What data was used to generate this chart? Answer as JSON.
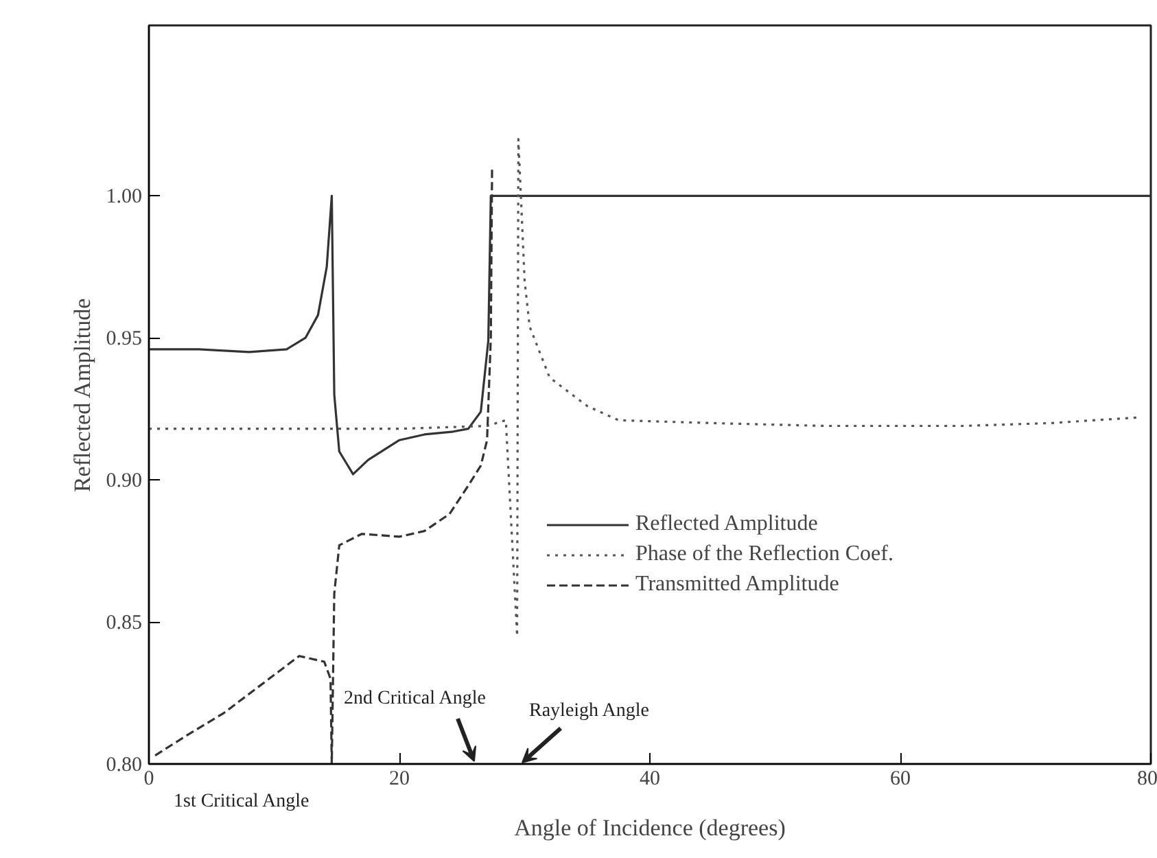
{
  "chart_data": {
    "type": "line",
    "xlabel": "Angle of Incidence (degrees)",
    "ylabel": "Reflected Amplitude",
    "xlim": [
      0,
      80
    ],
    "ylim": [
      0.8,
      1.06
    ],
    "xticks": [
      0,
      20,
      40,
      60,
      80
    ],
    "yticks": [
      {
        "value": 0.8,
        "label": "0.80"
      },
      {
        "value": 0.85,
        "label": "0.85"
      },
      {
        "value": 0.9,
        "label": "0.90"
      },
      {
        "value": 0.95,
        "label": "0.95"
      },
      {
        "value": 1.0,
        "label": "1.00"
      }
    ],
    "grid": false,
    "legend": "right",
    "series": [
      {
        "name": "Reflected Amplitude",
        "color": "#333333",
        "line_style": "solid",
        "x": [
          0,
          4,
          8,
          11,
          12.5,
          13.5,
          14.2,
          14.6,
          14.8,
          15.2,
          16.3,
          17.5,
          20,
          22,
          24.3,
          25.5,
          26.5,
          27.1,
          27.3,
          27.5,
          40,
          60,
          80
        ],
        "values": [
          0.946,
          0.946,
          0.945,
          0.946,
          0.95,
          0.958,
          0.975,
          1.0,
          0.93,
          0.91,
          0.902,
          0.907,
          0.914,
          0.916,
          0.917,
          0.918,
          0.924,
          0.949,
          1.0,
          1.0,
          1.0,
          1.0,
          1.0
        ]
      },
      {
        "name": "Phase of the Reflection Coef.",
        "color": "#555555",
        "line_style": "dotted",
        "x": [
          0,
          10,
          20,
          27,
          28.5,
          29.4,
          29.5,
          30,
          30.4,
          32,
          35,
          37.5,
          45,
          54,
          65,
          72,
          79
        ],
        "values": [
          0.918,
          0.918,
          0.918,
          0.919,
          0.921,
          0.845,
          1.02,
          0.97,
          0.954,
          0.936,
          0.926,
          0.921,
          0.92,
          0.919,
          0.919,
          0.92,
          0.922
        ]
      },
      {
        "name": "Transmitted Amplitude",
        "color": "#333333",
        "line_style": "dashed",
        "x": [
          0.5,
          3,
          6,
          9,
          12,
          14,
          14.5,
          14.6,
          14.8,
          15.2,
          17,
          20,
          22,
          24,
          25.5,
          26.5,
          27,
          27.3,
          27.4
        ],
        "values": [
          0.803,
          0.81,
          0.818,
          0.828,
          0.838,
          0.836,
          0.83,
          0.8,
          0.86,
          0.877,
          0.881,
          0.88,
          0.882,
          0.888,
          0.898,
          0.905,
          0.914,
          0.95,
          1.01
        ]
      }
    ],
    "annotations": [
      "1st Critical Angle",
      "2nd Critical Angle",
      "Rayleigh Angle"
    ]
  }
}
